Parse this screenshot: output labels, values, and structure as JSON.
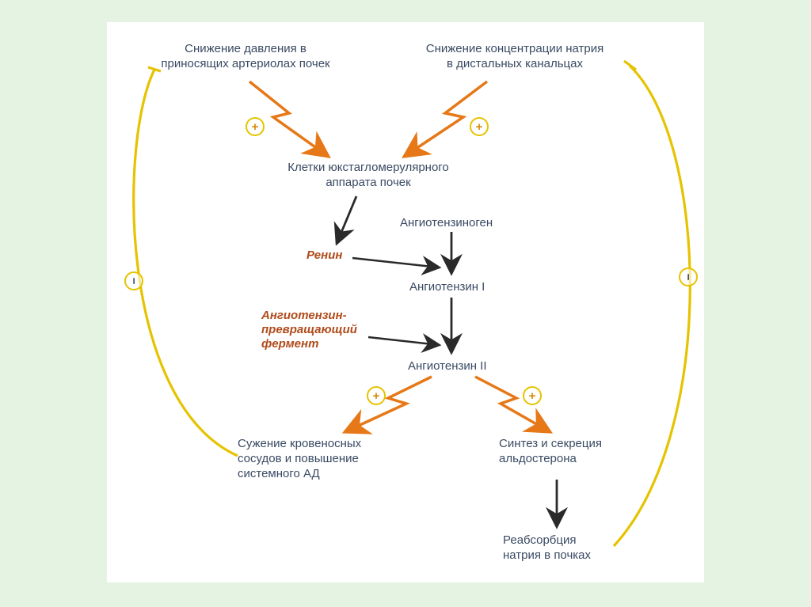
{
  "type": "flowchart",
  "background_color": "#e5f3e2",
  "canvas_color": "#ffffff",
  "text_color": "#3a4a63",
  "enzyme_color": "#b04a1a",
  "arrow_orange": "#e67817",
  "arrow_black": "#2a2a2a",
  "feedback_yellow": "#e6c300",
  "fontsize_label": 15,
  "nodes": {
    "top_left": "Снижение давления в\nприносящих артериолах почек",
    "top_right": "Снижение концентрации натрия\nв дистальных канальцах",
    "jga": "Клетки юкстагломерулярного\nаппарата почек",
    "renin": "Ренин",
    "angiotensinogen": "Ангиотензиноген",
    "angiotensin1": "Ангиотензин I",
    "ace": "Ангиотензин-\nпревращающий\nфермент",
    "angiotensin2": "Ангиотензин II",
    "vasoconstrict": "Сужение кровеносных\nсосудов и повышение\nсистемного АД",
    "aldosterone": "Синтез и секреция\nальдостерона",
    "reabsorption": "Реабсорбция\nнатрия в почках"
  },
  "symbols": {
    "plus": "+",
    "minus": "−"
  }
}
